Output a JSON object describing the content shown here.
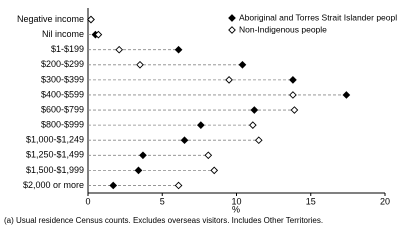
{
  "chart_data": {
    "type": "dot",
    "categories": [
      "Negative income",
      "Nil income",
      "$1-$199",
      "$200-$299",
      "$300-$399",
      "$400-$599",
      "$600-$799",
      "$800-$999",
      "$1,000-$1,249",
      "$1,250-$1,499",
      "$1,500-$1,999",
      "$2,000 or more"
    ],
    "series": [
      {
        "name": "Aboriginal and Torres Strait Islander people",
        "color": "#000000",
        "marker": "filled-diamond",
        "values": [
          0.2,
          0.5,
          6.1,
          10.4,
          13.8,
          17.4,
          11.2,
          7.6,
          6.5,
          3.7,
          3.4,
          1.7
        ]
      },
      {
        "name": "Non-Indigenous people",
        "color": "#000000",
        "marker": "open-diamond",
        "values": [
          0.2,
          0.7,
          2.1,
          3.5,
          9.5,
          13.8,
          13.9,
          11.1,
          11.5,
          8.1,
          8.5,
          6.1
        ]
      }
    ],
    "xlabel": "%",
    "xlim": [
      0,
      20
    ],
    "xticks": [
      0,
      5,
      10,
      15,
      20
    ],
    "legend": "top-right",
    "footnote": "(a) Usual residence Census counts. Excludes overseas visitors. Includes Other Territories."
  }
}
